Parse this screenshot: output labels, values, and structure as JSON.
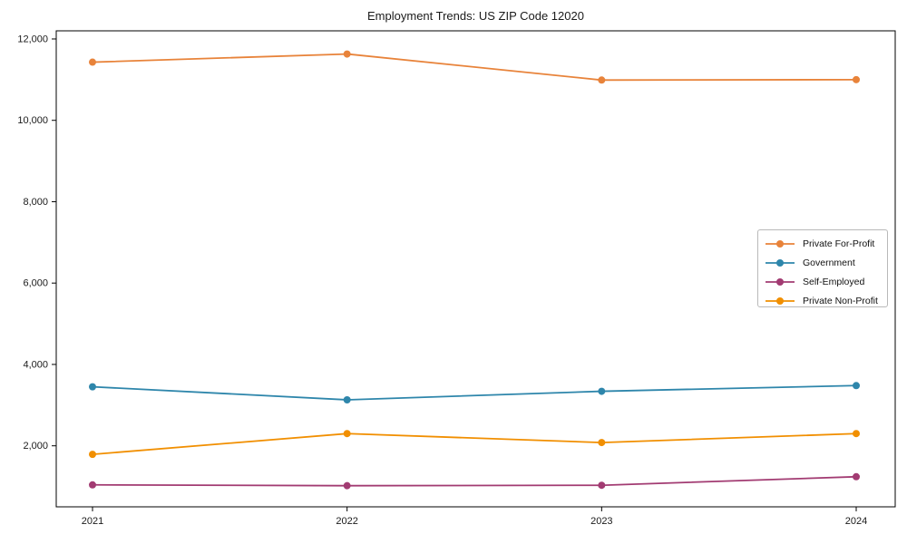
{
  "chart_data": {
    "type": "line",
    "title": "Employment Trends: US ZIP Code 12020",
    "xlabel": "",
    "ylabel": "",
    "x": [
      "2021",
      "2022",
      "2023",
      "2024"
    ],
    "series": [
      {
        "name": "Private For-Profit",
        "color": "#E8833A",
        "values": [
          11430,
          11630,
          10990,
          11000
        ]
      },
      {
        "name": "Government",
        "color": "#2E86AB",
        "values": [
          3450,
          3130,
          3340,
          3480
        ]
      },
      {
        "name": "Self-Employed",
        "color": "#A23B72",
        "values": [
          1040,
          1020,
          1030,
          1240
        ]
      },
      {
        "name": "Private Non-Profit",
        "color": "#F18F01",
        "values": [
          1790,
          2300,
          2080,
          2300
        ]
      }
    ],
    "ylim": [
      500,
      12200
    ],
    "yticks": [
      2000,
      4000,
      6000,
      8000,
      10000,
      12000
    ],
    "grid": false,
    "legend_position": "right-center",
    "marker": "circle",
    "axis_color": "#000000",
    "text_color": "#1a1a1a",
    "background": "#ffffff"
  }
}
